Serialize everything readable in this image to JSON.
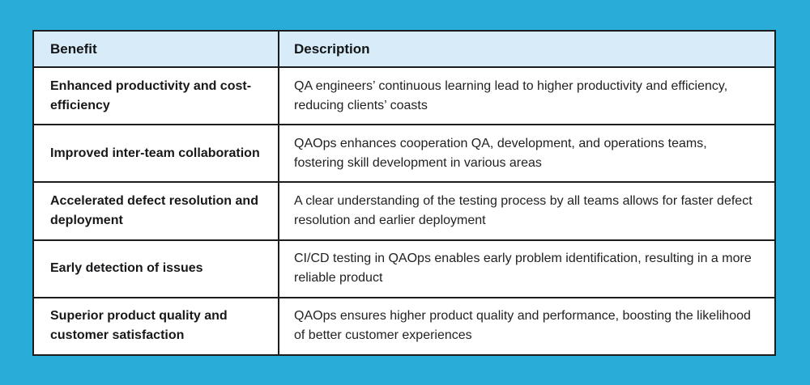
{
  "page": {
    "background_color": "#2aacd9",
    "card_color": "#ffffff",
    "header_color": "#d7ecf8",
    "border_color": "#1b1c1e"
  },
  "table": {
    "header": {
      "benefit": "Benefit",
      "description": "Description"
    },
    "rows": [
      {
        "benefit": "Enhanced productivity and cost-efficiency",
        "description": "QA engineers’ continuous learning lead to higher productivity and efficiency, reducing clients’ coasts"
      },
      {
        "benefit": "Improved inter-team collaboration",
        "description": "QAOps enhances cooperation QA, development, and operations teams, fostering skill development in various areas"
      },
      {
        "benefit": "Accelerated defect resolution and deployment",
        "description": "A clear understanding of the testing process by all teams allows for faster defect resolution and earlier deployment"
      },
      {
        "benefit": "Early detection of issues",
        "description": "CI/CD testing in QAOps enables early problem identification, resulting in a more reliable product"
      },
      {
        "benefit": "Superior product quality and customer satisfaction",
        "description": "QAOps ensures higher product quality and performance, boosting the likelihood of better customer experiences"
      }
    ]
  }
}
